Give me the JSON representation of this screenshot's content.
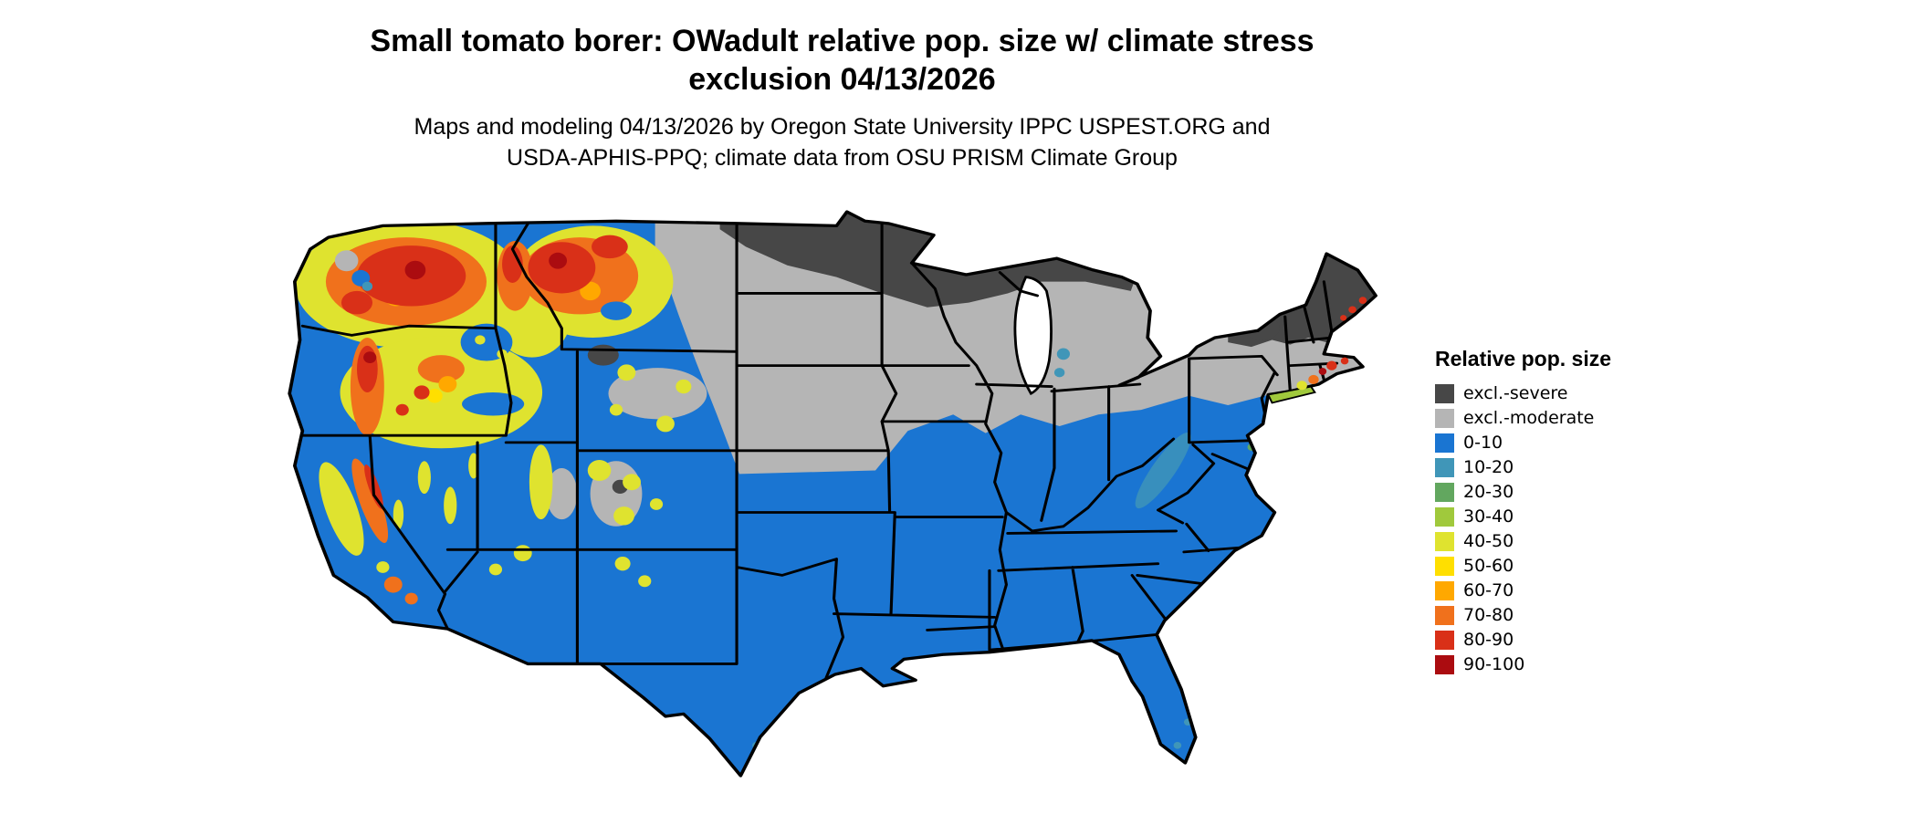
{
  "header": {
    "title_line1": "Small tomato borer: OWadult relative pop. size w/ climate stress",
    "title_line2": "exclusion 04/13/2026",
    "subtitle_line1": "Maps and modeling 04/13/2026 by Oregon State University IPPC USPEST.ORG and",
    "subtitle_line2": "USDA-APHIS-PPQ; climate data from OSU PRISM Climate Group"
  },
  "legend": {
    "title": "Relative pop. size",
    "items": [
      {
        "label": "excl.-severe",
        "color": "#474747"
      },
      {
        "label": "excl.-moderate",
        "color": "#b5b5b5"
      },
      {
        "label": "0-10",
        "color": "#1a75d2"
      },
      {
        "label": "10-20",
        "color": "#4096b8"
      },
      {
        "label": "20-30",
        "color": "#62a75f"
      },
      {
        "label": "30-40",
        "color": "#a0c93c"
      },
      {
        "label": "40-50",
        "color": "#dfe32f"
      },
      {
        "label": "50-60",
        "color": "#ffdf00"
      },
      {
        "label": "60-70",
        "color": "#ffa800"
      },
      {
        "label": "70-80",
        "color": "#f0711c"
      },
      {
        "label": "80-90",
        "color": "#d93018"
      },
      {
        "label": "90-100",
        "color": "#ab0c10"
      }
    ]
  },
  "map": {
    "region": "Contiguous United States",
    "type": "raster choropleth with state borders",
    "background": "#ffffff",
    "state_border_color": "#000000",
    "summary": [
      {
        "area": "Southern and eastern U.S. (TX through Southeast, Midwest south, mid-Atlantic)",
        "value": "0-10"
      },
      {
        "area": "Northern plains, upper Midwest, Great Lakes, upstate New York, New England",
        "value": "excl.-moderate"
      },
      {
        "area": "Far northern border: North Dakota top, Minnesota, northern Wisconsin, Michigan UP, Adirondacks, northern Maine",
        "value": "excl.-severe"
      },
      {
        "area": "Pacific Northwest (Washington, Oregon Cascades), western Montana, Idaho panhandle",
        "value": "50-100 (orange/red hotspots)"
      },
      {
        "area": "Great Basin, Sierra Nevada, Utah, Wyoming, Colorado Rockies",
        "value": "mottled 30-60 with gray exclusion patches"
      },
      {
        "area": "Southern New England coast, Long Island, Maine coast",
        "value": "small 30-100 coastal specks"
      }
    ]
  }
}
